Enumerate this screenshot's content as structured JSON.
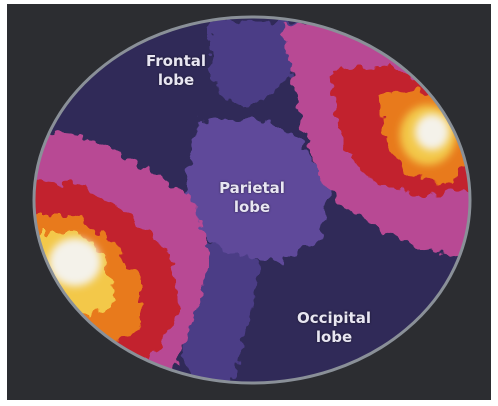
{
  "labels": {
    "frontal": [
      "Frontal",
      "lobe"
    ],
    "parietal": [
      "Parietal",
      "lobe"
    ],
    "occipital": [
      "Occipital",
      "lobe"
    ]
  },
  "colors": {
    "background": "#ffffff",
    "frame": "#2c2d31",
    "rim": "#8a9098",
    "low_activity": "#302a58",
    "mid_activity": "#5e4a9a",
    "pink": "#b84a94",
    "red": "#c2232e",
    "orange": "#e87a1e",
    "yellow": "#f3c84a",
    "peak": "#f4f2ea",
    "label_text": "#e8e6f2"
  }
}
